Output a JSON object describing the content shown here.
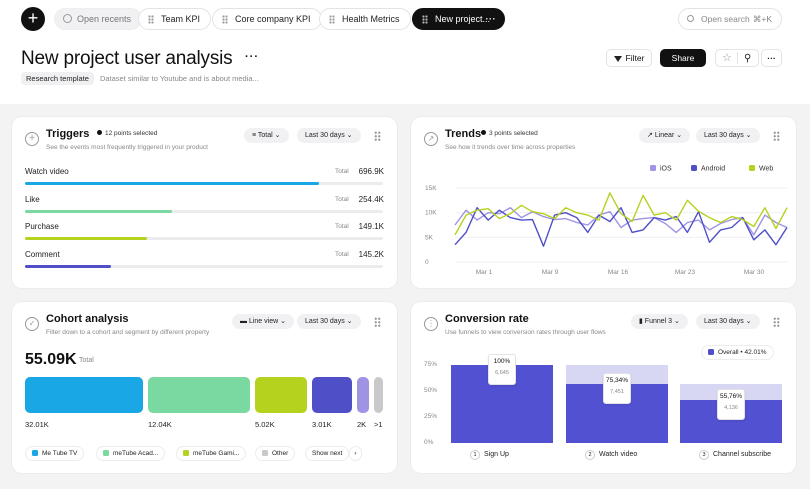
{
  "topbar": {
    "tabs": [
      {
        "label": "Open recents"
      },
      {
        "label": "Team KPI"
      },
      {
        "label": "Core company KPI"
      },
      {
        "label": "Health Metrics"
      },
      {
        "label": "New project..."
      }
    ],
    "search_placeholder": "Open search",
    "search_shortcut": "⌘+K"
  },
  "header": {
    "title": "New project user analysis",
    "tag": "Research template",
    "description": "Dataset similar to Youtube and is about media...",
    "filter_label": "Filter",
    "share_label": "Share"
  },
  "triggers": {
    "title": "Triggers",
    "badge": "12 points selected",
    "subtitle": "See the events most frequently triggered in your product",
    "dropdown1": "Total",
    "dropdown2": "Last 30 days",
    "rows": [
      {
        "label": "Watch video",
        "total_label": "Total",
        "value": "696.9K",
        "fraction": 0.82,
        "color": "#1aa7e6"
      },
      {
        "label": "Like",
        "total_label": "Total",
        "value": "254.4K",
        "fraction": 0.41,
        "color": "#7ad9a0"
      },
      {
        "label": "Purchase",
        "total_label": "Total",
        "value": "149.1K",
        "fraction": 0.34,
        "color": "#b5d21f"
      },
      {
        "label": "Comment",
        "total_label": "Total",
        "value": "145.2K",
        "fraction": 0.24,
        "color": "#4f4fc8"
      }
    ]
  },
  "trends": {
    "title": "Trends",
    "badge": "3 points selected",
    "subtitle": "See how it trends over time across properties",
    "dropdown1": "Linear",
    "dropdown2": "Last 30 days",
    "legend": [
      {
        "name": "iOS",
        "color": "#9f93e4"
      },
      {
        "name": "Android",
        "color": "#4f4fc8"
      },
      {
        "name": "Web",
        "color": "#b5d21f"
      }
    ]
  },
  "chart_data": {
    "type": "line",
    "y_ticks": [
      "15K",
      "10K",
      "5K",
      "0"
    ],
    "ylim": [
      0,
      15000
    ],
    "x_ticks": [
      "Mar 1",
      "Mar 9",
      "Mar 16",
      "Mar 23",
      "Mar 30"
    ],
    "series": [
      {
        "name": "iOS",
        "color": "#9f93e4",
        "values": [
          7500,
          10500,
          8500,
          10000,
          9800,
          11000,
          9000,
          10200,
          9200,
          8600,
          8800,
          8000,
          7500,
          9500,
          10200,
          7000,
          8500,
          8800,
          9000,
          7800,
          6000,
          8000,
          8500,
          6500,
          7800,
          8600,
          9000,
          5500,
          9500,
          8000,
          7000
        ]
      },
      {
        "name": "Android",
        "color": "#4f4fc8",
        "values": [
          3500,
          6000,
          11000,
          8500,
          10500,
          9000,
          8500,
          8600,
          3200,
          9500,
          10000,
          9000,
          6000,
          9500,
          8200,
          11000,
          6000,
          6500,
          9000,
          8500,
          9200,
          6000,
          10200,
          4000,
          6500,
          7000,
          9000,
          4500,
          6500,
          3500,
          7000
        ]
      },
      {
        "name": "Web",
        "color": "#b5d21f",
        "values": [
          5500,
          9500,
          10500,
          10800,
          8800,
          9800,
          11500,
          10200,
          9800,
          8800,
          11000,
          10000,
          9500,
          8500,
          14000,
          9800,
          8200,
          13500,
          9500,
          10000,
          8500,
          12500,
          10300,
          9000,
          8000,
          9200,
          8600,
          7200,
          11000,
          6800,
          11000
        ]
      }
    ]
  },
  "cohort": {
    "title": "Cohort analysis",
    "subtitle": "Filter down to a cohort and segment by different property",
    "dropdown1": "Line view",
    "dropdown2": "Last 30 days",
    "big_value": "55.09K",
    "big_label": "Total",
    "blocks": [
      {
        "value": "32.01K",
        "color": "#1aa7e6"
      },
      {
        "value": "12.04K",
        "color": "#7ad9a0"
      },
      {
        "value": "5.02K",
        "color": "#b5d21f"
      },
      {
        "value": "3.01K",
        "color": "#4f4fc8"
      },
      {
        "value": "2K",
        "color": "#9f93e4"
      },
      {
        "value": ">1",
        "color": "#c9c9cc"
      }
    ],
    "legend": [
      {
        "name": "Me Tube TV",
        "color": "#1aa7e6"
      },
      {
        "name": "meTube Acad...",
        "color": "#7ad9a0"
      },
      {
        "name": "meTube Gami...",
        "color": "#b5d21f"
      },
      {
        "name": "Other",
        "color": "#c9c9cc"
      }
    ],
    "show_next": "Show next"
  },
  "conversion": {
    "title": "Conversion rate",
    "subtitle": "Use funnels to view conversion rates through user flows",
    "dropdown1": "Funnel 3",
    "dropdown2": "Last 30 days",
    "overall_label": "Overall",
    "overall_value": "42.01%",
    "y_ticks": [
      "75%",
      "50%",
      "25%",
      "0%"
    ],
    "steps": [
      {
        "num": "1",
        "label": "Sign Up",
        "pct": "100%",
        "count": "6,645",
        "fraction": 1.0
      },
      {
        "num": "2",
        "label": "Watch video",
        "pct": "75,34%",
        "count": "7,451",
        "fraction": 0.7534
      },
      {
        "num": "3",
        "label": "Channel subscribe",
        "pct": "55,76%",
        "count": "4,136",
        "fraction": 0.5576
      }
    ]
  }
}
